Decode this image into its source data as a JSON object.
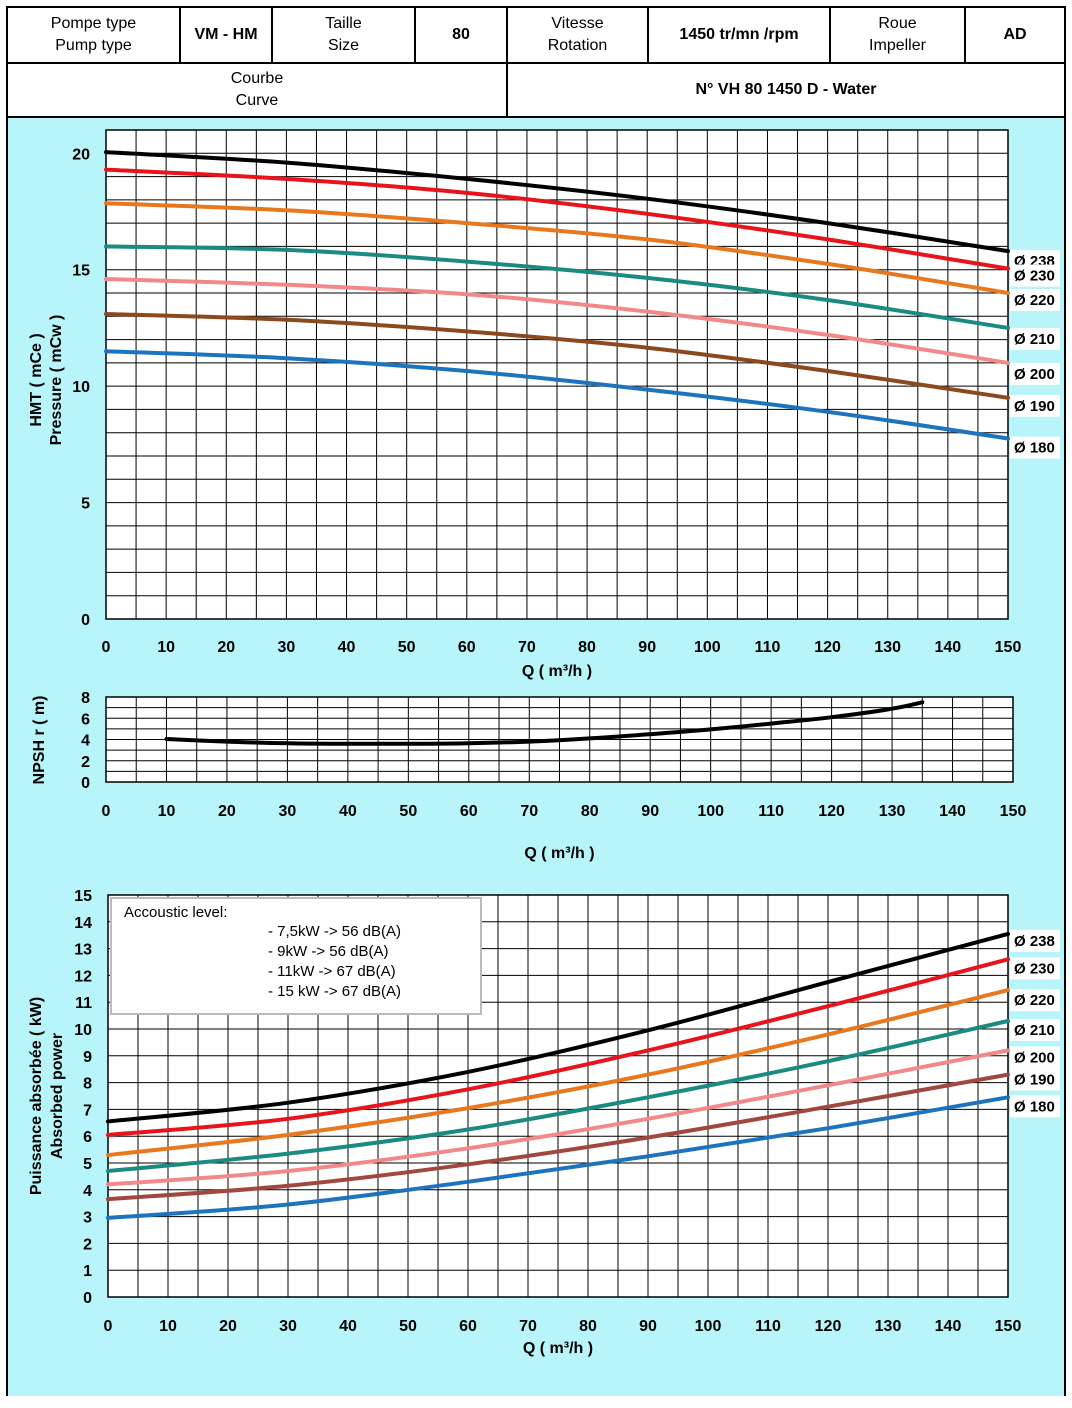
{
  "header": {
    "pump_type_fr": "Pompe type",
    "pump_type_en": "Pump type",
    "pump_type_value": "VM - HM",
    "size_fr": "Taille",
    "size_en": "Size",
    "size_value": "80",
    "speed_fr": "Vitesse",
    "speed_en": "Rotation",
    "speed_value": "1450 tr/mn /rpm",
    "impeller_fr": "Roue",
    "impeller_en": "Impeller",
    "impeller_value": "AD",
    "curve_fr": "Courbe",
    "curve_en": "Curve",
    "curve_value": "N° VH 80 1450 D - Water"
  },
  "colors": {
    "background": "#b7f5fa",
    "d238": "#000000",
    "d230": "#e8141b",
    "d220": "#e8781e",
    "d210": "#1a8a82",
    "d200": "#f2888a",
    "d190": "#8b4a1e",
    "d190_power": "#a0483f",
    "d180": "#1e73be"
  },
  "chart_data": [
    {
      "type": "line",
      "ylabel_fr": "HMT ( mCe )",
      "ylabel_en": "Pressure ( mCw )",
      "xlabel": "Q ( m³/h )",
      "xlim": [
        0,
        150
      ],
      "ylim": [
        0,
        21
      ],
      "xticks": [
        0,
        10,
        20,
        30,
        40,
        50,
        60,
        70,
        80,
        90,
        100,
        110,
        120,
        130,
        140,
        150
      ],
      "yticks": [
        0,
        5,
        10,
        15,
        20
      ],
      "grid": true,
      "series": [
        {
          "name": "Ø 238",
          "color_key": "d238",
          "x": [
            0,
            30,
            60,
            90,
            120,
            150
          ],
          "y": [
            20.05,
            19.6,
            18.9,
            18.05,
            17.0,
            15.8
          ]
        },
        {
          "name": "Ø 230",
          "color_key": "d230",
          "x": [
            0,
            30,
            60,
            90,
            120,
            150
          ],
          "y": [
            19.3,
            18.9,
            18.3,
            17.4,
            16.3,
            15.05
          ]
        },
        {
          "name": "Ø 220",
          "color_key": "d220",
          "x": [
            0,
            30,
            60,
            90,
            120,
            150
          ],
          "y": [
            17.85,
            17.55,
            17.0,
            16.3,
            15.25,
            14.0
          ]
        },
        {
          "name": "Ø 210",
          "color_key": "d210",
          "x": [
            0,
            30,
            60,
            90,
            120,
            150
          ],
          "y": [
            16.0,
            15.85,
            15.35,
            14.65,
            13.7,
            12.5
          ]
        },
        {
          "name": "Ø 200",
          "color_key": "d200",
          "x": [
            0,
            30,
            60,
            90,
            120,
            150
          ],
          "y": [
            14.6,
            14.35,
            13.95,
            13.2,
            12.2,
            11.0
          ]
        },
        {
          "name": "Ø 190",
          "color_key": "d190",
          "x": [
            0,
            30,
            60,
            90,
            120,
            150
          ],
          "y": [
            13.1,
            12.85,
            12.35,
            11.65,
            10.65,
            9.5
          ]
        },
        {
          "name": "Ø 180",
          "color_key": "d180",
          "x": [
            0,
            30,
            60,
            90,
            120,
            150
          ],
          "y": [
            11.5,
            11.2,
            10.65,
            9.85,
            8.9,
            7.75
          ]
        }
      ]
    },
    {
      "type": "line",
      "ylabel": "NPSH r ( m)",
      "xlabel": "Q ( m³/h )",
      "xlim": [
        0,
        150
      ],
      "ylim": [
        0,
        8
      ],
      "xticks": [
        0,
        10,
        20,
        30,
        40,
        50,
        60,
        70,
        80,
        90,
        100,
        110,
        120,
        130,
        140,
        150
      ],
      "yticks": [
        0,
        2,
        4,
        6,
        8
      ],
      "grid": true,
      "series": [
        {
          "color_key": "d238",
          "x": [
            10,
            20,
            30,
            40,
            50,
            60,
            70,
            80,
            90,
            100,
            110,
            120,
            130,
            135
          ],
          "y": [
            4.05,
            3.8,
            3.65,
            3.6,
            3.6,
            3.65,
            3.8,
            4.1,
            4.5,
            4.95,
            5.5,
            6.1,
            6.9,
            7.5
          ]
        }
      ]
    },
    {
      "type": "line",
      "ylabel_fr": "Puissance absorbée ( kW)",
      "ylabel_en": "Absorbed power",
      "xlabel": "Q ( m³/h )",
      "xlim": [
        0,
        150
      ],
      "ylim": [
        0,
        15
      ],
      "xticks": [
        0,
        10,
        20,
        30,
        40,
        50,
        60,
        70,
        80,
        90,
        100,
        110,
        120,
        130,
        140,
        150
      ],
      "yticks": [
        0,
        1,
        2,
        3,
        4,
        5,
        6,
        7,
        8,
        9,
        10,
        11,
        12,
        13,
        14,
        15
      ],
      "grid": true,
      "note": {
        "title": "Accoustic level:",
        "lines": [
          "- 7,5kW   ->   56 dB(A)",
          "- 9kW    ->   56 dB(A)",
          "- 11kW   ->   67 dB(A)",
          "- 15 kW   ->   67 dB(A)"
        ]
      },
      "series": [
        {
          "name": "Ø 238",
          "color_key": "d238",
          "x": [
            0,
            30,
            60,
            90,
            120,
            150
          ],
          "y": [
            6.55,
            7.25,
            8.4,
            9.95,
            11.75,
            13.55
          ]
        },
        {
          "name": "Ø 230",
          "color_key": "d230",
          "x": [
            0,
            30,
            60,
            90,
            120,
            150
          ],
          "y": [
            6.05,
            6.65,
            7.75,
            9.2,
            10.85,
            12.6
          ]
        },
        {
          "name": "Ø 220",
          "color_key": "d220",
          "x": [
            0,
            30,
            60,
            90,
            120,
            150
          ],
          "y": [
            5.3,
            6.05,
            7.05,
            8.3,
            9.8,
            11.45
          ]
        },
        {
          "name": "Ø 210",
          "color_key": "d210",
          "x": [
            0,
            30,
            60,
            90,
            120,
            150
          ],
          "y": [
            4.7,
            5.35,
            6.25,
            7.45,
            8.8,
            10.3
          ]
        },
        {
          "name": "Ø 200",
          "color_key": "d200",
          "x": [
            0,
            30,
            60,
            90,
            120,
            150
          ],
          "y": [
            4.2,
            4.7,
            5.55,
            6.65,
            7.9,
            9.2
          ]
        },
        {
          "name": "Ø 190",
          "color_key": "d190_power",
          "x": [
            0,
            30,
            60,
            90,
            120,
            150
          ],
          "y": [
            3.65,
            4.15,
            4.95,
            5.95,
            7.1,
            8.3
          ]
        },
        {
          "name": "Ø 180",
          "color_key": "d180",
          "x": [
            0,
            30,
            60,
            90,
            120,
            150
          ],
          "y": [
            2.95,
            3.45,
            4.3,
            5.25,
            6.3,
            7.45
          ]
        }
      ]
    }
  ]
}
